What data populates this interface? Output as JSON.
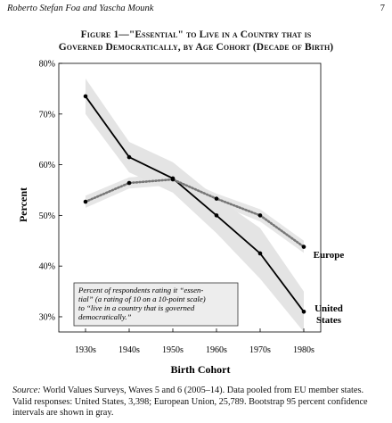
{
  "header": {
    "authors": "Roberto Stefan Foa and Yascha Mounk",
    "page_number": "7"
  },
  "figure": {
    "title_line1": "Figure 1—\"Essential\" to Live in a Country that is",
    "title_line2": "Governed Democratically, by Age Cohort (Decade of Birth)"
  },
  "chart_data": {
    "type": "line",
    "x": [
      "1930s",
      "1940s",
      "1950s",
      "1960s",
      "1970s",
      "1980s"
    ],
    "xlabel": "Birth Cohort",
    "ylabel": "Percent",
    "ylim": [
      27,
      80
    ],
    "yticks": [
      "30%",
      "40%",
      "50%",
      "60%",
      "70%",
      "80%"
    ],
    "ytick_values": [
      30,
      40,
      50,
      60,
      70,
      80
    ],
    "grid": false,
    "series": [
      {
        "name": "United States",
        "style": "solid",
        "color": "#000000",
        "values": [
          73.5,
          61.5,
          57.3,
          50,
          42.5,
          31
        ],
        "ci_low": [
          70,
          58.5,
          54.5,
          46.5,
          37.5,
          27
        ],
        "ci_high": [
          77,
          64.5,
          60.5,
          53.5,
          47.5,
          35
        ]
      },
      {
        "name": "Europe",
        "style": "dotted",
        "color": "#777777",
        "values": [
          52.7,
          56.4,
          57.1,
          53.3,
          50,
          43.8
        ],
        "ci_low": [
          51.5,
          55.3,
          56,
          52.3,
          48.8,
          42.6
        ],
        "ci_high": [
          53.9,
          57.5,
          58.2,
          54.3,
          51.2,
          45
        ]
      }
    ],
    "ci_color": "#e3e3e3",
    "annotation": "Percent of respondents rating it \"essen-tial\" (a rating of 10 on a 10-point scale) to \"live in a country that is governed democratically.\""
  },
  "labels": {
    "europe": "Europe",
    "us_line1": "United",
    "us_line2": "States",
    "note_lines": [
      "Percent of respondents rating it “essen-",
      "tial” (a rating of 10 on a 10-point scale)",
      "to “live in a country that is governed",
      "democratically.”"
    ]
  },
  "source": {
    "label": "Source:",
    "text": " World Values Surveys, Waves 5 and 6 (2005–14). Data pooled from EU member states. Valid responses: United States, 3,398; European Union, 25,789. Bootstrap 95 percent confidence intervals are shown in gray."
  }
}
